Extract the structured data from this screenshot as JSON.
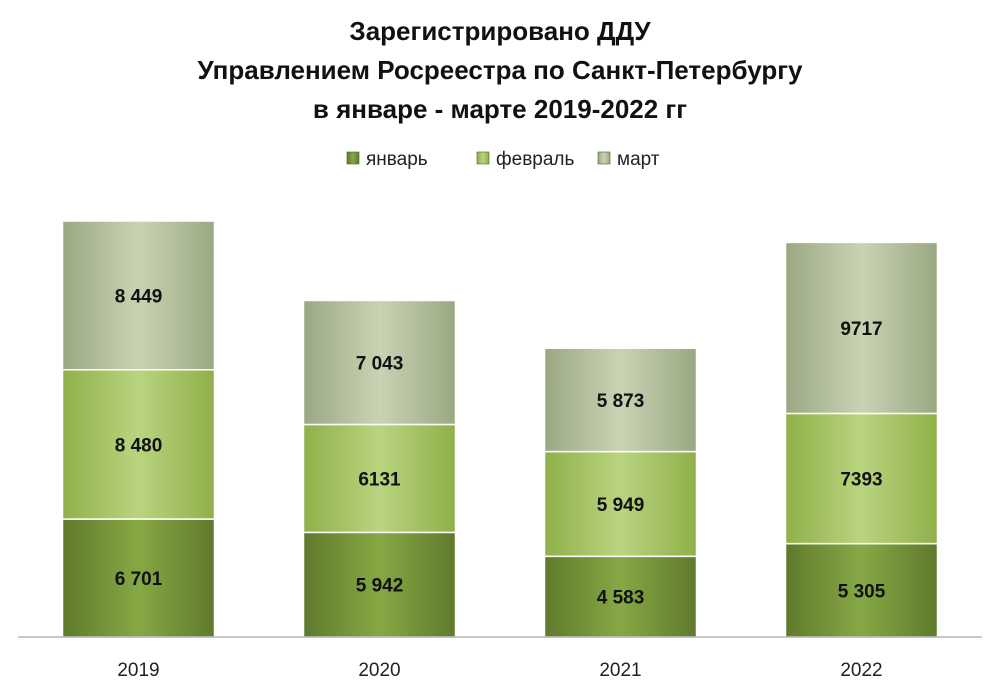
{
  "chart_data": {
    "type": "bar",
    "stacked": true,
    "title": [
      "Зарегистрировано ДДУ",
      "Управлением Росреестра по Санкт-Петербургу",
      "в январе - марте 2019-2022 гг"
    ],
    "xlabel": "",
    "ylabel": "",
    "categories": [
      "2019",
      "2020",
      "2021",
      "2022"
    ],
    "series": [
      {
        "name": "январь",
        "values": [
          6701,
          5942,
          4583,
          5305
        ],
        "labels": [
          "6 701",
          "5 942",
          "4 583",
          "5 305"
        ],
        "color": "#77933c"
      },
      {
        "name": "февраль",
        "values": [
          8480,
          6131,
          5949,
          7393
        ],
        "labels": [
          "8 480",
          "6131",
          "5 949",
          "7393"
        ],
        "color": "#9bbb59"
      },
      {
        "name": "март",
        "values": [
          8449,
          7043,
          5873,
          9717
        ],
        "labels": [
          "8 449",
          "7 043",
          "5 873",
          "9717"
        ],
        "color": "#aab58e"
      }
    ],
    "ylim": [
      0,
      23630
    ],
    "grid": false,
    "legend": "top"
  }
}
